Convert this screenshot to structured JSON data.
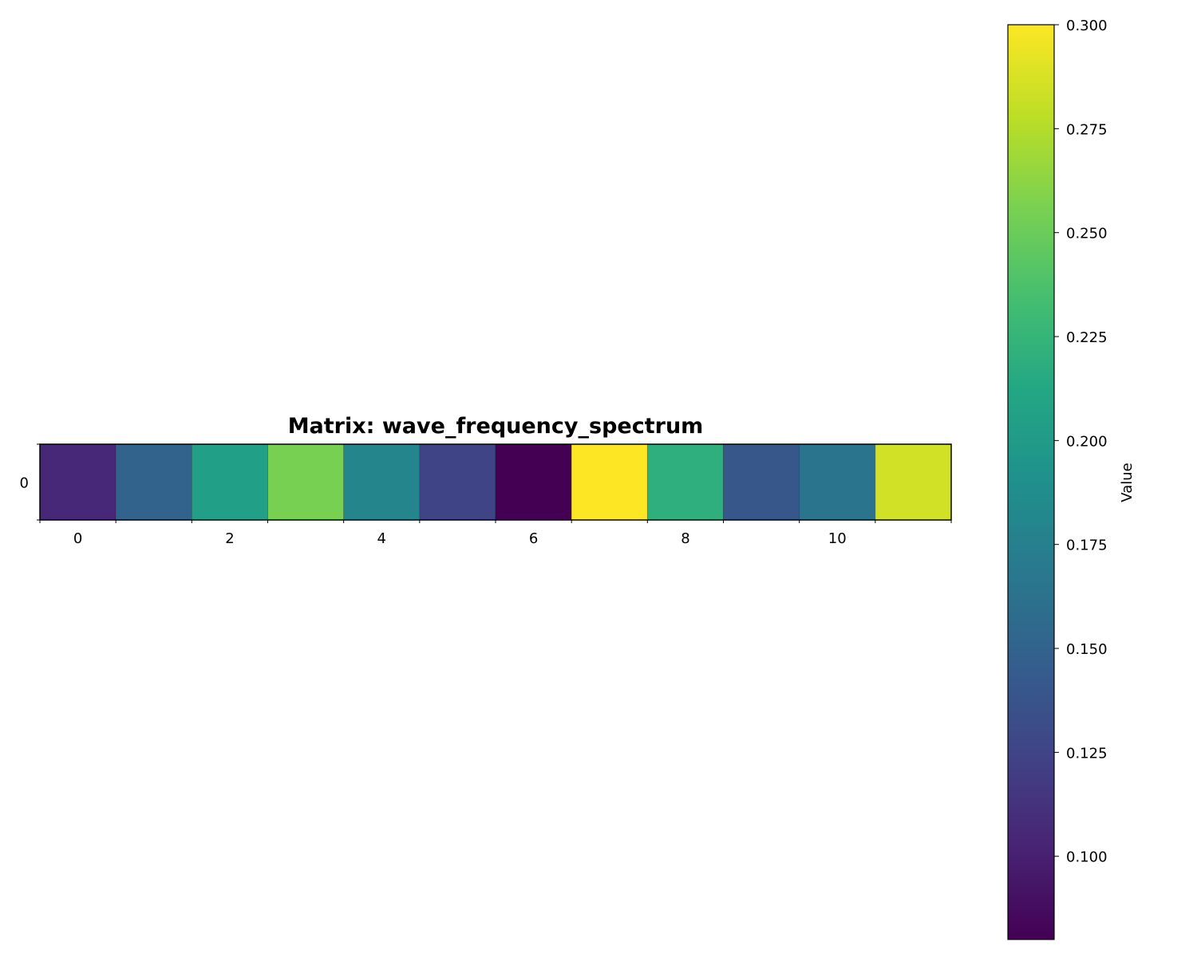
{
  "chart_data": {
    "type": "heatmap",
    "title": "Matrix: wave_frequency_spectrum",
    "rows": [
      0
    ],
    "columns": [
      0,
      1,
      2,
      3,
      4,
      5,
      6,
      7,
      8,
      9,
      10,
      11
    ],
    "values": [
      [
        0.105,
        0.15,
        0.205,
        0.255,
        0.18,
        0.125,
        0.08,
        0.3,
        0.22,
        0.14,
        0.165,
        0.285
      ]
    ],
    "x_tick_labels": [
      "0",
      "2",
      "4",
      "6",
      "8",
      "10"
    ],
    "y_tick_labels": [
      "0"
    ],
    "colormap": "viridis",
    "colorbar": {
      "label": "Value",
      "range": [
        0.08,
        0.3
      ],
      "tick_labels": [
        "0.100",
        "0.125",
        "0.150",
        "0.175",
        "0.200",
        "0.225",
        "0.250",
        "0.275",
        "0.300"
      ]
    }
  }
}
